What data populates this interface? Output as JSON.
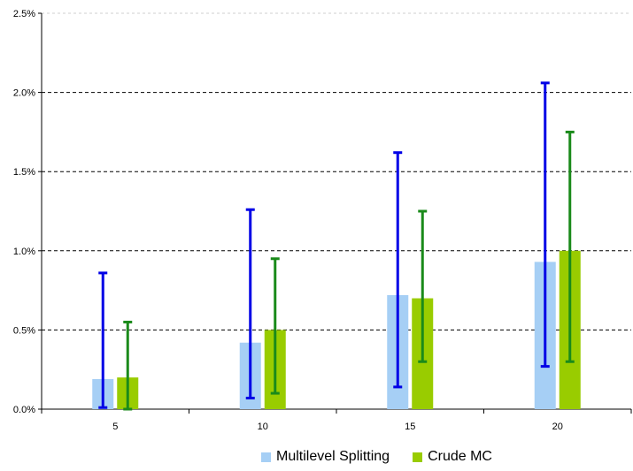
{
  "chart_data": {
    "type": "bar",
    "categories": [
      "5",
      "10",
      "15",
      "20"
    ],
    "y_ticks": [
      "0.0%",
      "0.5%",
      "1.0%",
      "1.5%",
      "2.0%",
      "2.5%"
    ],
    "ylim": [
      0,
      2.5
    ],
    "y_unit": "%",
    "grid": true,
    "legend_position": "bottom",
    "series": [
      {
        "name": "Multilevel Splitting",
        "color": "#a6cff5",
        "error_color": "#0000e6",
        "values": [
          0.19,
          0.42,
          0.72,
          0.93
        ],
        "error_low": [
          0.01,
          0.07,
          0.14,
          0.27
        ],
        "error_high": [
          0.86,
          1.26,
          1.62,
          2.06
        ]
      },
      {
        "name": "Crude MC",
        "color": "#99cc00",
        "error_color": "#1a8a1a",
        "values": [
          0.2,
          0.5,
          0.7,
          1.0
        ],
        "error_low": [
          0.0,
          0.1,
          0.3,
          0.3
        ],
        "error_high": [
          0.55,
          0.95,
          1.25,
          1.75
        ]
      }
    ]
  }
}
